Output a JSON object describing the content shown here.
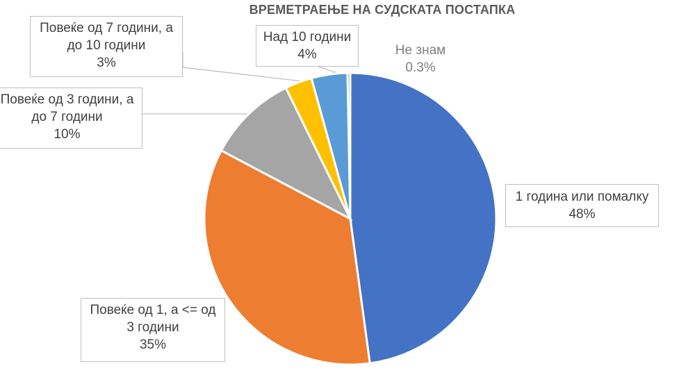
{
  "chart_data": {
    "type": "pie",
    "title": "ВРЕМЕТРАЕЊЕ НА СУДСКАТА ПОСТАПКА",
    "slices": [
      {
        "label_lines": [
          "1 година или помалку"
        ],
        "value": 48,
        "value_label": "48%",
        "color": "#4472C4"
      },
      {
        "label_lines": [
          "Повеќе од 1, а <= од",
          "3 години"
        ],
        "value": 35,
        "value_label": "35%",
        "color": "#ED7D31"
      },
      {
        "label_lines": [
          "Повеќе од 3 години, а",
          "до 7 години"
        ],
        "value": 10,
        "value_label": "10%",
        "color": "#A5A5A5"
      },
      {
        "label_lines": [
          "Повеќе од 7 години, а",
          "до 10 години"
        ],
        "value": 3,
        "value_label": "3%",
        "color": "#FFC000"
      },
      {
        "label_lines": [
          "Над 10 години"
        ],
        "value": 4,
        "value_label": "4%",
        "color": "#5B9BD5"
      },
      {
        "label_lines": [
          "Не знам"
        ],
        "value": 0.3,
        "value_label": "0.3%",
        "color": "#70AD47"
      }
    ]
  }
}
